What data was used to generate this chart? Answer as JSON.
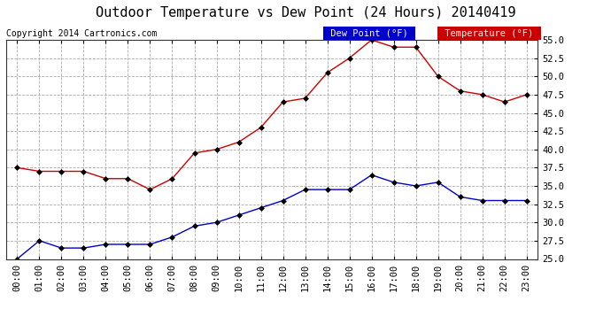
{
  "title": "Outdoor Temperature vs Dew Point (24 Hours) 20140419",
  "copyright": "Copyright 2014 Cartronics.com",
  "hours": [
    "00:00",
    "01:00",
    "02:00",
    "03:00",
    "04:00",
    "05:00",
    "06:00",
    "07:00",
    "08:00",
    "09:00",
    "10:00",
    "11:00",
    "12:00",
    "13:00",
    "14:00",
    "15:00",
    "16:00",
    "17:00",
    "18:00",
    "19:00",
    "20:00",
    "21:00",
    "22:00",
    "23:00"
  ],
  "temperature": [
    37.5,
    37.0,
    37.0,
    37.0,
    36.0,
    36.0,
    34.5,
    36.0,
    39.5,
    40.0,
    41.0,
    43.0,
    46.5,
    47.0,
    50.5,
    52.5,
    55.0,
    54.0,
    54.0,
    50.0,
    48.0,
    47.5,
    46.5,
    47.5
  ],
  "dew_point": [
    25.0,
    27.5,
    26.5,
    26.5,
    27.0,
    27.0,
    27.0,
    28.0,
    29.5,
    30.0,
    31.0,
    32.0,
    33.0,
    34.5,
    34.5,
    34.5,
    36.5,
    35.5,
    35.0,
    35.5,
    33.5,
    33.0,
    33.0,
    33.0
  ],
  "temp_color": "#cc0000",
  "dew_color": "#0000cc",
  "ylim": [
    25.0,
    55.0
  ],
  "yticks": [
    25.0,
    27.5,
    30.0,
    32.5,
    35.0,
    37.5,
    40.0,
    42.5,
    45.0,
    47.5,
    50.0,
    52.5,
    55.0
  ],
  "bg_color": "#ffffff",
  "grid_color": "#aaaaaa",
  "legend_dew_bg": "#0000cc",
  "legend_temp_bg": "#cc0000",
  "legend_text_color": "#ffffff",
  "title_fontsize": 11,
  "copyright_fontsize": 7,
  "tick_fontsize": 7.5,
  "legend_fontsize": 7.5,
  "marker": "D",
  "marker_size": 3
}
